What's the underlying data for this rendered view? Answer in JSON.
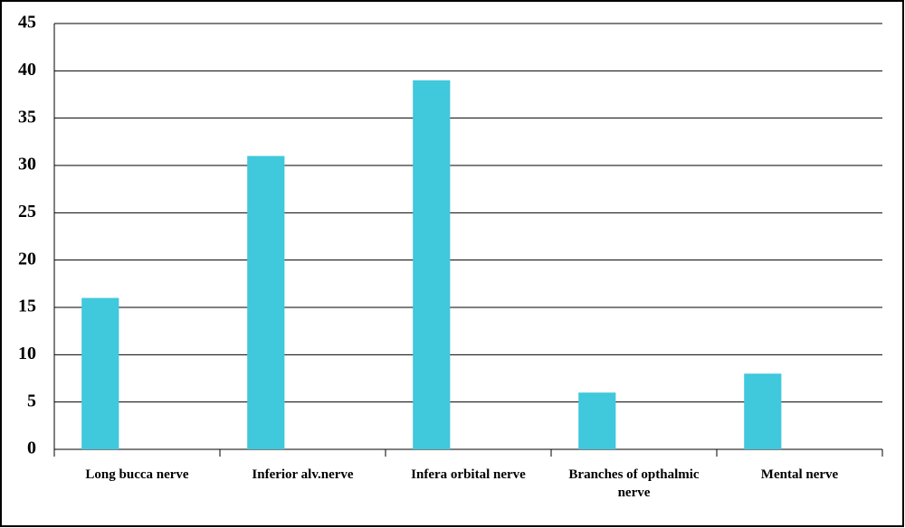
{
  "chart_data": {
    "type": "bar",
    "categories": [
      "Long bucca nerve",
      "Inferior alv.nerve",
      "Infera orbital nerve",
      "Branches of opthalmic nerve",
      "Mental nerve"
    ],
    "values": [
      16,
      31,
      39,
      6,
      8
    ],
    "color": "#40c8dc",
    "ylim": [
      0,
      45
    ],
    "yticks": [
      0,
      5,
      10,
      15,
      20,
      25,
      30,
      35,
      40,
      45
    ],
    "grid": true
  }
}
